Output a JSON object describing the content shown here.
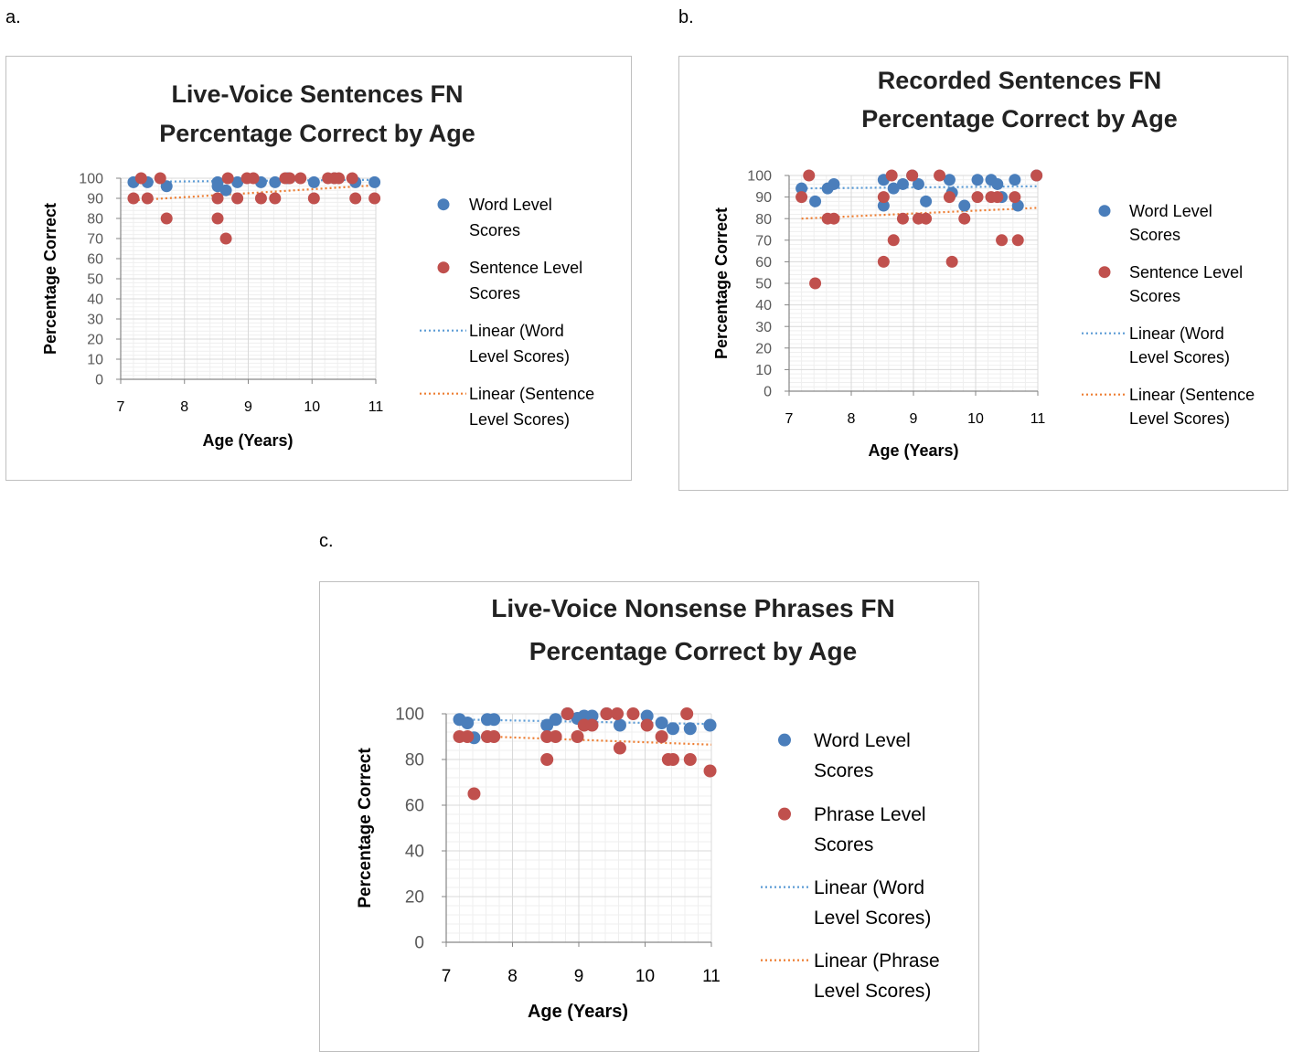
{
  "panel_labels": [
    "a.",
    "b.",
    "c."
  ],
  "colors": {
    "word": "#4a7ebb",
    "sentence": "#c0504d",
    "word_trend": "#5b9bd5",
    "sentence_trend": "#ed7d31",
    "grid": "#d9d9d9",
    "axis": "#868686"
  },
  "chart_data": [
    {
      "type": "scatter",
      "title_lines": [
        "Live-Voice Sentences FN",
        "Percentage Correct by Age"
      ],
      "xlabel": "Age (Years)",
      "ylabel": "Percentage Correct",
      "xlim": [
        7,
        11
      ],
      "ylim": [
        0,
        100
      ],
      "xticks": [
        7,
        8,
        9,
        10,
        11
      ],
      "yticks": [
        0,
        10,
        20,
        30,
        40,
        50,
        60,
        70,
        80,
        90,
        100
      ],
      "grid": true,
      "legend_position": "right",
      "legend": [
        {
          "kind": "marker",
          "series": 0,
          "lines": [
            "Word Level",
            "Scores"
          ]
        },
        {
          "kind": "marker",
          "series": 1,
          "lines": [
            "Sentence Level",
            "Scores"
          ]
        },
        {
          "kind": "trend",
          "series": 0,
          "lines": [
            "Linear (Word",
            "Level Scores)"
          ]
        },
        {
          "kind": "trend",
          "series": 1,
          "lines": [
            "Linear (Sentence",
            "Level Scores)"
          ]
        }
      ],
      "series": [
        {
          "name": "Word Level Scores",
          "color": "#4a7ebb",
          "points": [
            [
              7.2,
              98
            ],
            [
              7.42,
              98
            ],
            [
              7.72,
              96
            ],
            [
              8.52,
              98
            ],
            [
              8.52,
              96
            ],
            [
              8.65,
              94
            ],
            [
              8.83,
              98
            ],
            [
              9.2,
              98
            ],
            [
              9.42,
              98
            ],
            [
              9.62,
              100
            ],
            [
              10.03,
              98
            ],
            [
              10.35,
              100
            ],
            [
              10.68,
              98
            ],
            [
              10.98,
              98
            ]
          ],
          "trend": [
            [
              7.2,
              98.2
            ],
            [
              11,
              99.2
            ]
          ]
        },
        {
          "name": "Sentence Level Scores",
          "color": "#c0504d",
          "points": [
            [
              7.2,
              90
            ],
            [
              7.32,
              100
            ],
            [
              7.42,
              90
            ],
            [
              7.62,
              100
            ],
            [
              7.72,
              80
            ],
            [
              8.52,
              80
            ],
            [
              8.52,
              90
            ],
            [
              8.65,
              70
            ],
            [
              8.68,
              100
            ],
            [
              8.83,
              90
            ],
            [
              8.98,
              100
            ],
            [
              9.08,
              100
            ],
            [
              9.2,
              90
            ],
            [
              9.42,
              90
            ],
            [
              9.58,
              100
            ],
            [
              9.65,
              100
            ],
            [
              9.82,
              100
            ],
            [
              10.03,
              90
            ],
            [
              10.25,
              100
            ],
            [
              10.35,
              100
            ],
            [
              10.42,
              100
            ],
            [
              10.63,
              100
            ],
            [
              10.68,
              90
            ],
            [
              10.98,
              90
            ]
          ],
          "trend": [
            [
              7.2,
              89
            ],
            [
              11,
              96.5
            ]
          ]
        }
      ]
    },
    {
      "type": "scatter",
      "title_lines": [
        "Recorded Sentences FN",
        "Percentage Correct by Age"
      ],
      "xlabel": "Age (Years)",
      "ylabel": "Percentage Correct",
      "xlim": [
        7,
        11
      ],
      "ylim": [
        0,
        100
      ],
      "xticks": [
        7,
        8,
        9,
        10,
        11
      ],
      "yticks": [
        0,
        10,
        20,
        30,
        40,
        50,
        60,
        70,
        80,
        90,
        100
      ],
      "grid": true,
      "legend_position": "right",
      "legend": [
        {
          "kind": "marker",
          "series": 0,
          "lines": [
            "Word Level",
            "Scores"
          ]
        },
        {
          "kind": "marker",
          "series": 1,
          "lines": [
            "Sentence Level",
            "Scores"
          ]
        },
        {
          "kind": "trend",
          "series": 0,
          "lines": [
            "Linear (Word",
            "Level Scores)"
          ]
        },
        {
          "kind": "trend",
          "series": 1,
          "lines": [
            "Linear (Sentence",
            "Level Scores)"
          ]
        }
      ],
      "series": [
        {
          "name": "Word Level Scores",
          "color": "#4a7ebb",
          "points": [
            [
              7.2,
              94
            ],
            [
              7.42,
              88
            ],
            [
              7.62,
              94
            ],
            [
              7.72,
              96
            ],
            [
              8.52,
              98
            ],
            [
              8.52,
              86
            ],
            [
              8.68,
              94
            ],
            [
              8.83,
              96
            ],
            [
              8.98,
              100
            ],
            [
              9.08,
              96
            ],
            [
              9.2,
              88
            ],
            [
              9.58,
              98
            ],
            [
              9.62,
              92
            ],
            [
              9.82,
              86
            ],
            [
              10.03,
              98
            ],
            [
              10.25,
              98
            ],
            [
              10.35,
              96
            ],
            [
              10.42,
              90
            ],
            [
              10.63,
              98
            ],
            [
              10.68,
              86
            ],
            [
              10.98,
              100
            ]
          ],
          "trend": [
            [
              7.2,
              94
            ],
            [
              11,
              95
            ]
          ]
        },
        {
          "name": "Sentence Level Scores",
          "color": "#c0504d",
          "points": [
            [
              7.2,
              90
            ],
            [
              7.32,
              100
            ],
            [
              7.42,
              50
            ],
            [
              7.62,
              80
            ],
            [
              7.72,
              80
            ],
            [
              8.52,
              60
            ],
            [
              8.52,
              90
            ],
            [
              8.65,
              100
            ],
            [
              8.68,
              70
            ],
            [
              8.83,
              80
            ],
            [
              8.98,
              100
            ],
            [
              9.08,
              80
            ],
            [
              9.2,
              80
            ],
            [
              9.42,
              100
            ],
            [
              9.58,
              90
            ],
            [
              9.62,
              60
            ],
            [
              9.82,
              80
            ],
            [
              10.03,
              90
            ],
            [
              10.25,
              90
            ],
            [
              10.35,
              90
            ],
            [
              10.42,
              70
            ],
            [
              10.63,
              90
            ],
            [
              10.68,
              70
            ],
            [
              10.98,
              100
            ]
          ],
          "trend": [
            [
              7.2,
              80
            ],
            [
              11,
              85
            ]
          ]
        }
      ]
    },
    {
      "type": "scatter",
      "title_lines": [
        "Live-Voice Nonsense Phrases FN",
        "Percentage Correct by Age"
      ],
      "xlabel": "Age (Years)",
      "ylabel": "Percentage Correct",
      "xlim": [
        7,
        11
      ],
      "ylim": [
        0,
        100
      ],
      "xticks": [
        7,
        8,
        9,
        10,
        11
      ],
      "yticks": [
        0,
        20,
        40,
        60,
        80,
        100
      ],
      "grid": true,
      "legend_position": "right",
      "legend": [
        {
          "kind": "marker",
          "series": 0,
          "lines": [
            "Word Level",
            "Scores"
          ]
        },
        {
          "kind": "marker",
          "series": 1,
          "lines": [
            "Phrase Level",
            "Scores"
          ]
        },
        {
          "kind": "trend",
          "series": 0,
          "lines": [
            "Linear (Word",
            "Level Scores)"
          ]
        },
        {
          "kind": "trend",
          "series": 1,
          "lines": [
            "Linear (Phrase",
            "Level Scores)"
          ]
        }
      ],
      "series": [
        {
          "name": "Word Level Scores",
          "color": "#4a7ebb",
          "points": [
            [
              7.2,
              97.5
            ],
            [
              7.32,
              96
            ],
            [
              7.42,
              89.5
            ],
            [
              7.62,
              97.5
            ],
            [
              7.72,
              97.5
            ],
            [
              8.52,
              95
            ],
            [
              8.65,
              97.5
            ],
            [
              8.83,
              100
            ],
            [
              8.98,
              98
            ],
            [
              9.08,
              99
            ],
            [
              9.2,
              99
            ],
            [
              9.42,
              100
            ],
            [
              9.62,
              95
            ],
            [
              10.03,
              99
            ],
            [
              10.25,
              96
            ],
            [
              10.42,
              93.5
            ],
            [
              10.68,
              93.5
            ],
            [
              10.98,
              95
            ]
          ],
          "trend": [
            [
              7.2,
              97.5
            ],
            [
              11,
              95.5
            ]
          ]
        },
        {
          "name": "Phrase Level Scores",
          "color": "#c0504d",
          "points": [
            [
              7.2,
              90
            ],
            [
              7.32,
              90
            ],
            [
              7.42,
              65
            ],
            [
              7.62,
              90
            ],
            [
              7.72,
              90
            ],
            [
              8.52,
              80
            ],
            [
              8.52,
              90
            ],
            [
              8.65,
              90
            ],
            [
              8.83,
              100
            ],
            [
              8.98,
              90
            ],
            [
              9.08,
              95
            ],
            [
              9.2,
              95
            ],
            [
              9.42,
              100
            ],
            [
              9.58,
              100
            ],
            [
              9.62,
              85
            ],
            [
              9.82,
              100
            ],
            [
              10.03,
              95
            ],
            [
              10.25,
              90
            ],
            [
              10.35,
              80
            ],
            [
              10.42,
              80
            ],
            [
              10.63,
              100
            ],
            [
              10.68,
              80
            ],
            [
              10.98,
              75
            ]
          ],
          "trend": [
            [
              7.2,
              90.5
            ],
            [
              11,
              86.5
            ]
          ]
        }
      ]
    }
  ]
}
